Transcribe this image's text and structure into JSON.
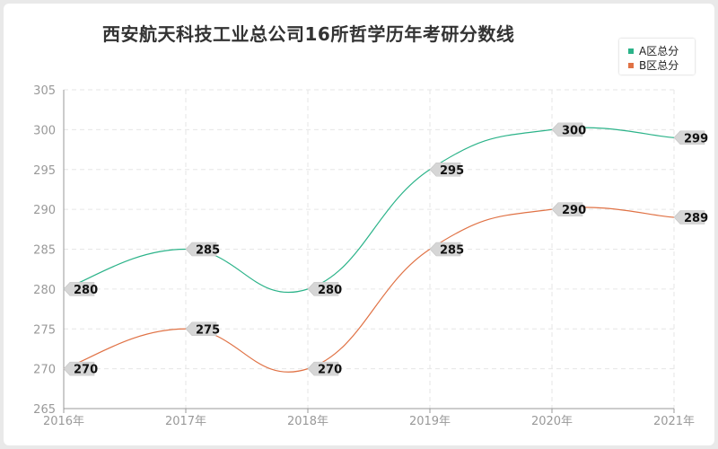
{
  "chart_data": {
    "type": "line",
    "title": "西安航天科技工业总公司16所哲学历年考研分数线",
    "categories": [
      "2016年",
      "2017年",
      "2018年",
      "2019年",
      "2020年",
      "2021年"
    ],
    "ylim": [
      265,
      305
    ],
    "yticks": [
      265,
      270,
      275,
      280,
      285,
      290,
      295,
      300,
      305
    ],
    "grid": true,
    "legend_position": "top-right",
    "series": [
      {
        "name": "A区总分",
        "values": [
          280,
          285,
          280,
          295,
          300,
          299
        ],
        "color": "#2bb389"
      },
      {
        "name": "B区总分",
        "values": [
          270,
          275,
          270,
          285,
          290,
          289
        ],
        "color": "#e07245"
      }
    ]
  }
}
